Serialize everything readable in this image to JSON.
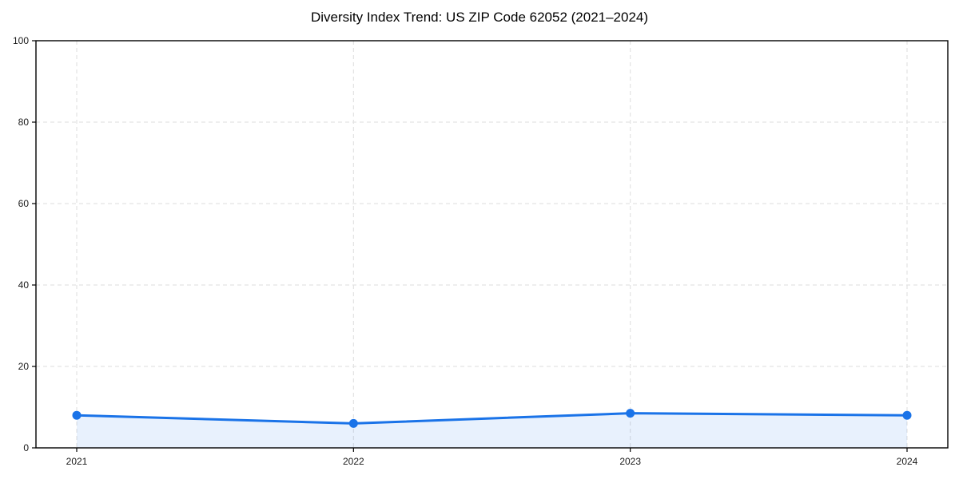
{
  "chart_data": {
    "type": "area",
    "title": "Diversity Index Trend: US ZIP Code 62052 (2021–2024)",
    "categories": [
      "2021",
      "2022",
      "2023",
      "2024"
    ],
    "series": [
      {
        "name": "Diversity Index",
        "values": [
          8,
          6,
          8.5,
          8
        ]
      }
    ],
    "xlabel": "",
    "ylabel": "",
    "ylim": [
      0,
      100
    ],
    "yticks": [
      0,
      20,
      40,
      60,
      80,
      100
    ],
    "grid": true,
    "grid_style": "dashed",
    "legend_position": "none",
    "colors": {
      "line": "#1a73e8",
      "marker": "#1a73e8",
      "fill": "#1a73e8",
      "fill_opacity": 0.1,
      "grid": "#e3e3e3",
      "spine": "#000000",
      "tick_text": "#1a1a1a",
      "title_text": "#000000",
      "background": "#ffffff"
    }
  }
}
